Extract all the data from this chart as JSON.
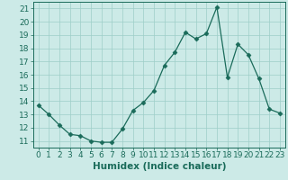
{
  "x": [
    0,
    1,
    2,
    3,
    4,
    5,
    6,
    7,
    8,
    9,
    10,
    11,
    12,
    13,
    14,
    15,
    16,
    17,
    18,
    19,
    20,
    21,
    22,
    23
  ],
  "y": [
    13.7,
    13.0,
    12.2,
    11.5,
    11.4,
    11.0,
    10.9,
    10.9,
    11.9,
    13.3,
    13.9,
    14.8,
    16.7,
    17.7,
    19.2,
    18.7,
    19.1,
    21.1,
    15.8,
    18.3,
    17.5,
    15.7,
    13.4,
    13.1
  ],
  "line_color": "#1a6b5a",
  "marker": "D",
  "marker_size": 2.5,
  "bg_color": "#cceae7",
  "grid_color": "#9ecec8",
  "xlabel": "Humidex (Indice chaleur)",
  "xlim": [
    -0.5,
    23.5
  ],
  "ylim": [
    10.5,
    21.5
  ],
  "yticks": [
    11,
    12,
    13,
    14,
    15,
    16,
    17,
    18,
    19,
    20,
    21
  ],
  "xticks": [
    0,
    1,
    2,
    3,
    4,
    5,
    6,
    7,
    8,
    9,
    10,
    11,
    12,
    13,
    14,
    15,
    16,
    17,
    18,
    19,
    20,
    21,
    22,
    23
  ],
  "tick_color": "#1a6b5a",
  "label_fontsize": 6.5,
  "xlabel_fontsize": 7.5
}
